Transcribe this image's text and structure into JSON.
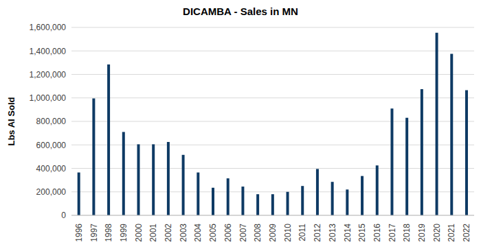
{
  "chart_data": {
    "type": "bar",
    "title": "DICAMBA - Sales in MN",
    "y_label": "Lbs AI Sold",
    "categories": [
      "1996",
      "1997",
      "1998",
      "1999",
      "2000",
      "2001",
      "2002",
      "2003",
      "2004",
      "2005",
      "2006",
      "2007",
      "2008",
      "2009",
      "2010",
      "2011",
      "2012",
      "2013",
      "2014",
      "2015",
      "2016",
      "2017",
      "2018",
      "2019",
      "2020",
      "2021",
      "2022"
    ],
    "values": [
      365000,
      995000,
      1285000,
      710000,
      605000,
      605000,
      625000,
      515000,
      365000,
      235000,
      315000,
      245000,
      180000,
      180000,
      200000,
      250000,
      395000,
      285000,
      220000,
      335000,
      425000,
      910000,
      830000,
      1075000,
      1555000,
      1375000,
      1065000
    ],
    "color": "#0e3a64",
    "ylim": [
      0,
      1600000
    ],
    "yticks": [
      0,
      {
        "value": 200000,
        "label": "200,000"
      },
      {
        "value": 400000,
        "label": "400,000"
      },
      {
        "value": 600000,
        "label": "600,000"
      },
      {
        "value": 800000,
        "label": "800,000"
      },
      {
        "value": 1000000,
        "label": "1,000,000"
      },
      {
        "value": 1200000,
        "label": "1,200,000"
      },
      {
        "value": 1400000,
        "label": "1,400,000"
      },
      {
        "value": 1600000,
        "label": "1,600,000"
      }
    ],
    "grid": true
  }
}
